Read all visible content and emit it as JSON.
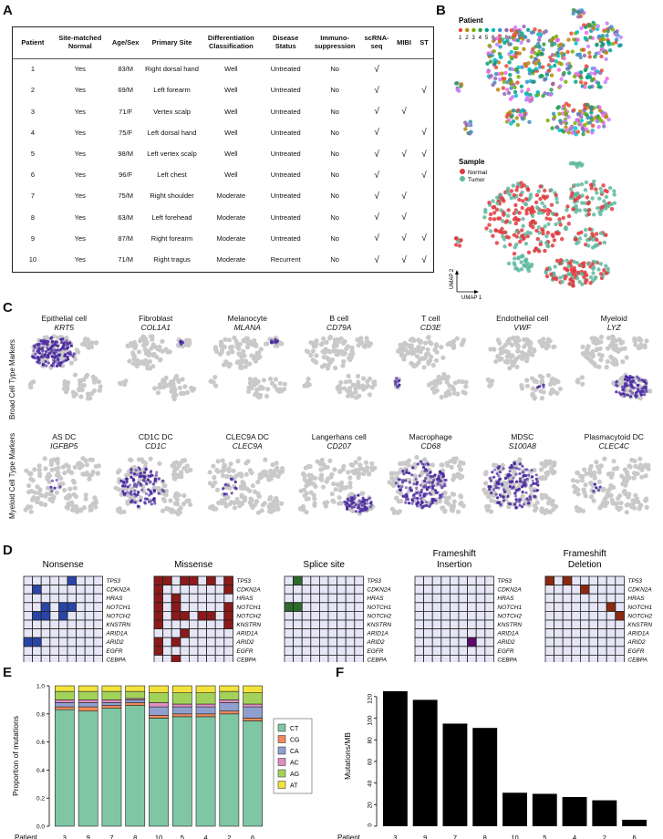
{
  "panels": {
    "a": "A",
    "b": "B",
    "c": "C",
    "d": "D",
    "e": "E",
    "f": "F"
  },
  "table": {
    "headers": [
      "Patient",
      "Site-matched Normal",
      "Age/Sex",
      "Primary Site",
      "Differentiation Classification",
      "Disease Status",
      "Immuno-suppression",
      "scRNA-seq",
      "MIBI",
      "ST"
    ],
    "rows": [
      [
        "1",
        "Yes",
        "83/M",
        "Right dorsal hand",
        "Well",
        "Untreated",
        "No",
        "√",
        "",
        ""
      ],
      [
        "2",
        "Yes",
        "69/M",
        "Left forearm",
        "Well",
        "Untreated",
        "No",
        "√",
        "",
        "√"
      ],
      [
        "3",
        "Yes",
        "71/F",
        "Vertex scalp",
        "Well",
        "Untreated",
        "No",
        "√",
        "√",
        ""
      ],
      [
        "4",
        "Yes",
        "75/F",
        "Left dorsal hand",
        "Well",
        "Untreated",
        "No",
        "√",
        "",
        "√"
      ],
      [
        "5",
        "Yes",
        "98/M",
        "Left vertex scalp",
        "Well",
        "Untreated",
        "No",
        "√",
        "√",
        "√"
      ],
      [
        "6",
        "Yes",
        "96/F",
        "Left chest",
        "Well",
        "Untreated",
        "No",
        "√",
        "",
        "√"
      ],
      [
        "7",
        "Yes",
        "75/M",
        "Right shoulder",
        "Moderate",
        "Untreated",
        "No",
        "√",
        "√",
        ""
      ],
      [
        "8",
        "Yes",
        "63/M",
        "Left forehead",
        "Moderate",
        "Untreated",
        "No",
        "√",
        "√",
        ""
      ],
      [
        "9",
        "Yes",
        "87/M",
        "Right forearm",
        "Moderate",
        "Untreated",
        "No",
        "√",
        "√",
        "√"
      ],
      [
        "10",
        "Yes",
        "71/M",
        "Right tragus",
        "Moderate",
        "Recurrent",
        "No",
        "√",
        "√",
        "√"
      ]
    ]
  },
  "umap_b": {
    "patient_legend_title": "Patient",
    "patient_labels": [
      "1",
      "2",
      "3",
      "4",
      "5",
      "6",
      "7",
      "8",
      "9",
      "10"
    ],
    "patient_colors": [
      "#e64b35",
      "#b8860b",
      "#7cae00",
      "#2f9e44",
      "#00a087",
      "#00bfc4",
      "#3c8dbc",
      "#8c6bb1",
      "#c77cff",
      "#f564e3"
    ],
    "sample_legend_title": "Sample",
    "sample_labels": [
      "Normal",
      "Tumor"
    ],
    "sample_colors": [
      "#e03a3e",
      "#5fb8a0"
    ],
    "axis1": "UMAP 1",
    "axis2": "UMAP 2"
  },
  "umap_c": {
    "row_labels": [
      "Broad Cell Type Markers",
      "Myeloid Cell Type Markers"
    ],
    "row1": [
      {
        "cell": "Epithelial cell",
        "gene": "KRT5"
      },
      {
        "cell": "Fibroblast",
        "gene": "COL1A1"
      },
      {
        "cell": "Melanocyte",
        "gene": "MLANA"
      },
      {
        "cell": "B cell",
        "gene": "CD79A"
      },
      {
        "cell": "T cell",
        "gene": "CD3E"
      },
      {
        "cell": "Endothelial cell",
        "gene": "VWF"
      },
      {
        "cell": "Myeloid",
        "gene": "LYZ"
      }
    ],
    "row2": [
      {
        "cell": "AS DC",
        "gene": "IGFBP5"
      },
      {
        "cell": "CD1C DC",
        "gene": "CD1C"
      },
      {
        "cell": "CLEC9A DC",
        "gene": "CLEC9A"
      },
      {
        "cell": "Langerhans cell",
        "gene": "CD207"
      },
      {
        "cell": "Macrophage",
        "gene": "CD68"
      },
      {
        "cell": "MDSC",
        "gene": "S100A8"
      },
      {
        "cell": "Plasmacytoid DC",
        "gene": "CLEC4C"
      }
    ],
    "expr_color": "#4b2aa0",
    "bg_color": "#c9c9c9"
  },
  "mutations": {
    "patient_label": "Patient",
    "patients": [
      "3",
      "9",
      "7",
      "8",
      "10",
      "5",
      "4",
      "2",
      "6"
    ],
    "genes": [
      "TP53",
      "CDKN2A",
      "HRAS",
      "NOTCH1",
      "NOTCH2",
      "KNSTRN",
      "ARID1A",
      "ARID2",
      "EGFR",
      "CEBPA"
    ],
    "panels": [
      {
        "title": "Nonsense",
        "color": "#2a45a8",
        "cells": [
          [
            0,
            5
          ],
          [
            1,
            1
          ],
          [
            3,
            2
          ],
          [
            3,
            4
          ],
          [
            3,
            5
          ],
          [
            4,
            1
          ],
          [
            4,
            2
          ],
          [
            4,
            4
          ],
          [
            7,
            0
          ],
          [
            7,
            1
          ]
        ]
      },
      {
        "title": "Missense",
        "color": "#8b1a1a",
        "cells": [
          [
            0,
            0
          ],
          [
            0,
            1
          ],
          [
            0,
            3
          ],
          [
            0,
            4
          ],
          [
            0,
            6
          ],
          [
            0,
            8
          ],
          [
            1,
            0
          ],
          [
            1,
            8
          ],
          [
            2,
            0
          ],
          [
            2,
            2
          ],
          [
            3,
            0
          ],
          [
            3,
            2
          ],
          [
            3,
            8
          ],
          [
            4,
            0
          ],
          [
            4,
            2
          ],
          [
            4,
            3
          ],
          [
            4,
            5
          ],
          [
            4,
            6
          ],
          [
            4,
            8
          ],
          [
            5,
            0
          ],
          [
            5,
            8
          ],
          [
            6,
            3
          ],
          [
            7,
            0
          ],
          [
            7,
            2
          ],
          [
            8,
            0
          ],
          [
            9,
            2
          ]
        ]
      },
      {
        "title": "Splice site",
        "color": "#2d6b2d",
        "cells": [
          [
            0,
            1
          ],
          [
            3,
            0
          ],
          [
            3,
            1
          ]
        ]
      },
      {
        "title": "Frameshift Insertion",
        "color": "#5c0a6b",
        "cells": [
          [
            7,
            6
          ]
        ]
      },
      {
        "title": "Frameshift Deletion",
        "color": "#8b2a10",
        "cells": [
          [
            0,
            0
          ],
          [
            0,
            2
          ],
          [
            1,
            4
          ],
          [
            3,
            7
          ],
          [
            4,
            8
          ]
        ]
      }
    ]
  },
  "chart_data": [
    {
      "type": "bar",
      "stacked": true,
      "ylabel": "Proportion of mutations",
      "xlabel": "Patient",
      "categories": [
        "3",
        "9",
        "7",
        "8",
        "10",
        "5",
        "4",
        "2",
        "6"
      ],
      "ylim": [
        0,
        1.0
      ],
      "yticks": [
        "0.0",
        "0.2",
        "0.4",
        "0.6",
        "0.8",
        "1.0"
      ],
      "legend": [
        "CT",
        "CG",
        "CA",
        "AC",
        "AG",
        "AT"
      ],
      "colors": [
        "#7fc6a4",
        "#f08a5a",
        "#8fa0cf",
        "#e08fc0",
        "#a3d25a",
        "#f2e23c"
      ],
      "series": [
        {
          "name": "CT",
          "values": [
            0.83,
            0.82,
            0.84,
            0.86,
            0.77,
            0.78,
            0.78,
            0.8,
            0.75
          ]
        },
        {
          "name": "CG",
          "values": [
            0.02,
            0.03,
            0.02,
            0.02,
            0.02,
            0.02,
            0.02,
            0.02,
            0.02
          ]
        },
        {
          "name": "CA",
          "values": [
            0.03,
            0.03,
            0.02,
            0.02,
            0.06,
            0.05,
            0.05,
            0.06,
            0.08
          ]
        },
        {
          "name": "AC",
          "values": [
            0.02,
            0.02,
            0.02,
            0.01,
            0.03,
            0.02,
            0.02,
            0.02,
            0.02
          ]
        },
        {
          "name": "AG",
          "values": [
            0.06,
            0.06,
            0.06,
            0.05,
            0.07,
            0.08,
            0.08,
            0.06,
            0.08
          ]
        },
        {
          "name": "AT",
          "values": [
            0.04,
            0.04,
            0.04,
            0.04,
            0.05,
            0.05,
            0.05,
            0.04,
            0.05
          ]
        }
      ]
    },
    {
      "type": "bar",
      "ylabel": "Mutations/MB",
      "xlabel": "Patient",
      "categories": [
        "3",
        "9",
        "7",
        "8",
        "10",
        "5",
        "4",
        "2",
        "6"
      ],
      "values": [
        125,
        117,
        95,
        91,
        31,
        30,
        27,
        24,
        6
      ],
      "ylim": [
        0,
        130
      ],
      "yticks": [
        "0",
        "20",
        "40",
        "60",
        "80",
        "100",
        "120"
      ],
      "color": "#000000"
    }
  ]
}
